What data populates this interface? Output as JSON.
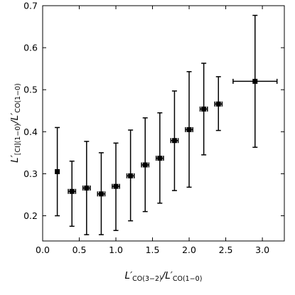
{
  "chart_data": {
    "type": "scatter",
    "title": "",
    "xlabel": "L′CO(3−2)/L′CO(1−0)",
    "ylabel": "L′[CI](1−0)/L′CO(1−0)",
    "xlabel_parts": {
      "main": "L′",
      "sub": "CO(3−2)",
      "slash": "/L′",
      "sub2": "CO(1−0)"
    },
    "ylabel_parts": {
      "main": "L′",
      "sub": "[CI](1−0)",
      "slash": "/L′",
      "sub2": "CO(1−0)"
    },
    "xlim": [
      0.0,
      3.3
    ],
    "ylim": [
      0.14,
      0.7
    ],
    "xticks": [
      0.0,
      0.5,
      1.0,
      1.5,
      2.0,
      2.5,
      3.0
    ],
    "xtick_labels": [
      "0.0",
      "0.5",
      "1.0",
      "1.5",
      "2.0",
      "2.5",
      "3.0"
    ],
    "yticks": [
      0.2,
      0.3,
      0.4,
      0.5,
      0.6,
      0.7
    ],
    "ytick_labels": [
      "0.2",
      "0.3",
      "0.4",
      "0.5",
      "0.6",
      "0.7"
    ],
    "grid": false,
    "marker": "square",
    "color": "#000000",
    "points": [
      {
        "x": 0.2,
        "y": 0.305,
        "xerr": 0.02,
        "y_low": 0.2,
        "y_high": 0.41
      },
      {
        "x": 0.4,
        "y": 0.258,
        "xerr": 0.05,
        "y_low": 0.175,
        "y_high": 0.33
      },
      {
        "x": 0.6,
        "y": 0.266,
        "xerr": 0.05,
        "y_low": 0.155,
        "y_high": 0.377
      },
      {
        "x": 0.8,
        "y": 0.252,
        "xerr": 0.05,
        "y_low": 0.155,
        "y_high": 0.35
      },
      {
        "x": 1.0,
        "y": 0.27,
        "xerr": 0.05,
        "y_low": 0.165,
        "y_high": 0.373
      },
      {
        "x": 1.2,
        "y": 0.295,
        "xerr": 0.05,
        "y_low": 0.188,
        "y_high": 0.404
      },
      {
        "x": 1.4,
        "y": 0.321,
        "xerr": 0.05,
        "y_low": 0.21,
        "y_high": 0.433
      },
      {
        "x": 1.6,
        "y": 0.337,
        "xerr": 0.05,
        "y_low": 0.23,
        "y_high": 0.445
      },
      {
        "x": 1.8,
        "y": 0.379,
        "xerr": 0.05,
        "y_low": 0.26,
        "y_high": 0.497
      },
      {
        "x": 2.0,
        "y": 0.405,
        "xerr": 0.05,
        "y_low": 0.268,
        "y_high": 0.543
      },
      {
        "x": 2.2,
        "y": 0.454,
        "xerr": 0.05,
        "y_low": 0.345,
        "y_high": 0.563
      },
      {
        "x": 2.4,
        "y": 0.466,
        "xerr": 0.05,
        "y_low": 0.403,
        "y_high": 0.531
      },
      {
        "x": 2.9,
        "y": 0.52,
        "xerr": 0.3,
        "y_low": 0.363,
        "y_high": 0.677
      }
    ]
  }
}
